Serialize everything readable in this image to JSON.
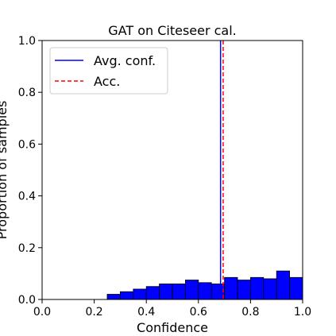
{
  "chart_data": {
    "type": "bar",
    "title": "GAT on Citeseer cal.",
    "xlabel": "Confidence",
    "ylabel": "Proportion of samples",
    "xlim": [
      0.0,
      1.0
    ],
    "ylim": [
      0.0,
      1.0
    ],
    "xticks": [
      "0.0",
      "0.2",
      "0.4",
      "0.6",
      "0.8",
      "1.0"
    ],
    "yticks": [
      "0.0",
      "0.2",
      "0.4",
      "0.6",
      "0.8",
      "1.0"
    ],
    "bin_width": 0.05,
    "bins": [
      {
        "x": 0.25,
        "value": 0.02
      },
      {
        "x": 0.3,
        "value": 0.03
      },
      {
        "x": 0.35,
        "value": 0.04
      },
      {
        "x": 0.4,
        "value": 0.05
      },
      {
        "x": 0.45,
        "value": 0.06
      },
      {
        "x": 0.5,
        "value": 0.06
      },
      {
        "x": 0.55,
        "value": 0.075
      },
      {
        "x": 0.6,
        "value": 0.065
      },
      {
        "x": 0.65,
        "value": 0.06
      },
      {
        "x": 0.7,
        "value": 0.085
      },
      {
        "x": 0.75,
        "value": 0.075
      },
      {
        "x": 0.8,
        "value": 0.085
      },
      {
        "x": 0.85,
        "value": 0.08
      },
      {
        "x": 0.9,
        "value": 0.11
      },
      {
        "x": 0.95,
        "value": 0.085
      }
    ],
    "avg_conf": 0.685,
    "acc": 0.695,
    "legend": [
      {
        "label": "Avg. conf.",
        "color": "#0000ff",
        "style": "solid"
      },
      {
        "label": "Acc.",
        "color": "#ff0000",
        "style": "dashed"
      }
    ],
    "legend_position": "top-left",
    "bar_color": "#0000ff",
    "grid": false
  }
}
